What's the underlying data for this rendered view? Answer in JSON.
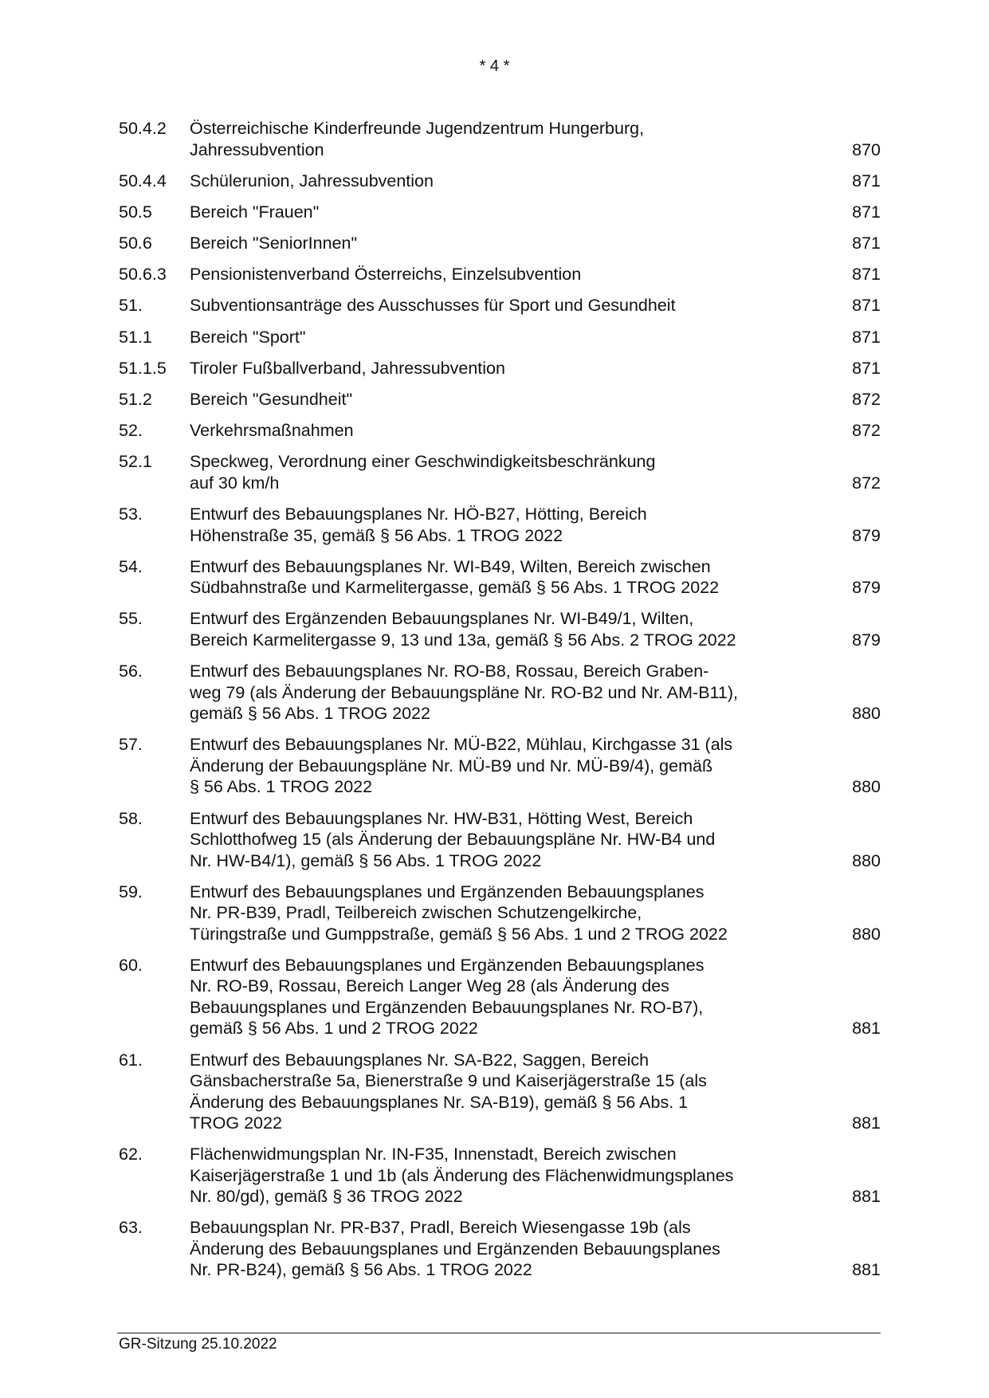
{
  "header": "* 4 *",
  "entries": [
    {
      "num": "50.4.2",
      "lines": [
        "Österreichische Kinderfreunde Jugendzentrum Hungerburg,",
        "Jahressubvention"
      ],
      "page": "870"
    },
    {
      "num": "50.4.4",
      "lines": [
        "Schülerunion, Jahressubvention"
      ],
      "page": "871"
    },
    {
      "num": "50.5",
      "lines": [
        "Bereich \"Frauen\""
      ],
      "page": "871"
    },
    {
      "num": "50.6",
      "lines": [
        "Bereich \"SeniorInnen\""
      ],
      "page": "871"
    },
    {
      "num": "50.6.3",
      "lines": [
        "Pensionistenverband Österreichs, Einzelsubvention"
      ],
      "page": "871"
    },
    {
      "num": "51.",
      "lines": [
        "Subventionsanträge des Ausschusses für Sport und Gesundheit"
      ],
      "page": "871"
    },
    {
      "num": "51.1",
      "lines": [
        "Bereich \"Sport\""
      ],
      "page": "871"
    },
    {
      "num": "51.1.5",
      "lines": [
        "Tiroler Fußballverband, Jahressubvention"
      ],
      "page": "871"
    },
    {
      "num": "51.2",
      "lines": [
        "Bereich \"Gesundheit\""
      ],
      "page": "872"
    },
    {
      "num": "52.",
      "lines": [
        "Verkehrsmaßnahmen"
      ],
      "page": "872"
    },
    {
      "num": "52.1",
      "lines": [
        "Speckweg, Verordnung einer Geschwindigkeitsbeschränkung",
        "auf 30 km/h"
      ],
      "page": "872"
    },
    {
      "num": "53.",
      "lines": [
        "Entwurf des Bebauungsplanes Nr. HÖ-B27, Hötting, Bereich",
        "Höhenstraße 35, gemäß § 56 Abs. 1 TROG 2022"
      ],
      "page": "879"
    },
    {
      "num": "54.",
      "lines": [
        "Entwurf des Bebauungsplanes Nr. WI-B49, Wilten, Bereich zwischen",
        "Südbahnstraße und Karmelitergasse, gemäß § 56 Abs. 1 TROG 2022"
      ],
      "page": "879"
    },
    {
      "num": "55.",
      "lines": [
        "Entwurf des Ergänzenden Bebauungsplanes Nr. WI-B49/1, Wilten,",
        "Bereich Karmelitergasse 9, 13 und 13a, gemäß § 56 Abs. 2 TROG 2022"
      ],
      "page": "879"
    },
    {
      "num": "56.",
      "lines": [
        "Entwurf des Bebauungsplanes Nr. RO-B8, Rossau, Bereich Graben-",
        "weg 79 (als Änderung der Bebauungspläne Nr. RO-B2 und Nr. AM-B11),",
        "gemäß § 56 Abs. 1 TROG 2022"
      ],
      "page": "880"
    },
    {
      "num": "57.",
      "lines": [
        "Entwurf des Bebauungsplanes Nr. MÜ-B22, Mühlau, Kirchgasse 31 (als",
        "Änderung der Bebauungspläne Nr. MÜ-B9 und Nr. MÜ-B9/4), gemäß",
        "§ 56 Abs. 1 TROG 2022"
      ],
      "page": "880"
    },
    {
      "num": "58.",
      "lines": [
        "Entwurf des Bebauungsplanes Nr. HW-B31, Hötting West, Bereich",
        "Schlotthofweg 15 (als Änderung der Bebauungspläne Nr. HW-B4 und",
        "Nr. HW-B4/1), gemäß § 56 Abs. 1 TROG 2022"
      ],
      "page": "880"
    },
    {
      "num": "59.",
      "lines": [
        "Entwurf des Bebauungsplanes und Ergänzenden Bebauungsplanes",
        "Nr. PR-B39, Pradl, Teilbereich zwischen Schutzengelkirche,",
        "Türingstraße und Gumppstraße, gemäß § 56 Abs. 1 und 2 TROG 2022"
      ],
      "page": "880"
    },
    {
      "num": "60.",
      "lines": [
        "Entwurf des Bebauungsplanes und Ergänzenden Bebauungsplanes",
        "Nr. RO-B9, Rossau, Bereich Langer Weg 28 (als Änderung des",
        "Bebauungsplanes und Ergänzenden Bebauungsplanes Nr. RO-B7),",
        "gemäß § 56 Abs. 1 und 2 TROG 2022"
      ],
      "page": "881"
    },
    {
      "num": "61.",
      "lines": [
        "Entwurf des Bebauungsplanes Nr. SA-B22, Saggen, Bereich",
        "Gänsbacherstraße 5a, Bienerstraße 9 und Kaiserjägerstraße 15 (als",
        "Änderung des Bebauungsplanes Nr. SA-B19), gemäß § 56 Abs. 1",
        "TROG 2022"
      ],
      "page": "881"
    },
    {
      "num": "62.",
      "lines": [
        "Flächenwidmungsplan Nr. IN-F35, Innenstadt, Bereich zwischen",
        "Kaiserjägerstraße 1 und 1b (als Änderung des Flächenwidmungsplanes",
        "Nr. 80/gd), gemäß § 36 TROG 2022"
      ],
      "page": "881"
    },
    {
      "num": "63.",
      "lines": [
        "Bebauungsplan Nr. PR-B37, Pradl, Bereich Wiesengasse 19b (als",
        "Änderung des Bebauungsplanes und Ergänzenden Bebauungsplanes",
        "Nr. PR-B24), gemäß § 56 Abs. 1 TROG 2022"
      ],
      "page": "881"
    }
  ],
  "footer": "GR-Sitzung 25.10.2022"
}
